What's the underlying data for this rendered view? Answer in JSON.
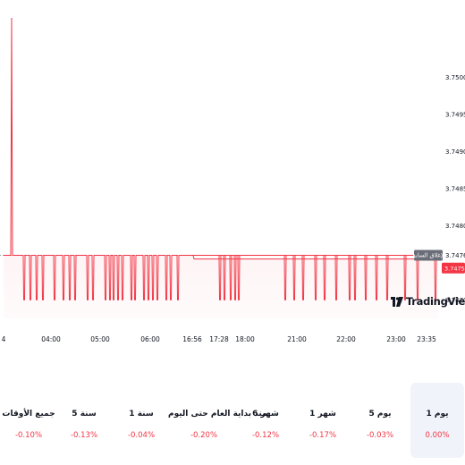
{
  "chart_data": {
    "type": "line",
    "y_ticks": [
      "3.750000",
      "3.749500",
      "3.749000",
      "3.748500",
      "3.748000",
      "3.747000"
    ],
    "ylim": [
      3.74675,
      3.7508
    ],
    "x_ticks": [
      "4",
      "04:00",
      "05:00",
      "06:00",
      "16:56",
      "17:28",
      "18:00",
      "21:00",
      "22:00",
      "23:00",
      "23:35"
    ],
    "baseline_value": 3.7476,
    "low_value": 3.747,
    "spike": {
      "value": 3.7508
    },
    "current_price": "3.747500",
    "previous_close": "3.747600",
    "previous_close_label": "الإغلاق السابق",
    "line_color": "#f23645",
    "grid": false
  },
  "branding": {
    "text": "TradingView"
  },
  "periods": [
    {
      "label": "1 يوم",
      "change": "0.00%",
      "active": true
    },
    {
      "label": "5 يوم",
      "change": "-0.03%",
      "active": false
    },
    {
      "label": "1 شهر",
      "change": "-0.17%",
      "active": false
    },
    {
      "label": "6 شهر",
      "change": "-0.12%",
      "active": false
    },
    {
      "label": "منذ بداية العام حتى اليوم",
      "change": "-0.20%",
      "active": false
    },
    {
      "label": "1 سنة",
      "change": "-0.04%",
      "active": false
    },
    {
      "label": "5 سنة",
      "change": "-0.13%",
      "active": false
    },
    {
      "label": "جميع الأوقات",
      "change": "-0.10%",
      "active": false
    }
  ]
}
